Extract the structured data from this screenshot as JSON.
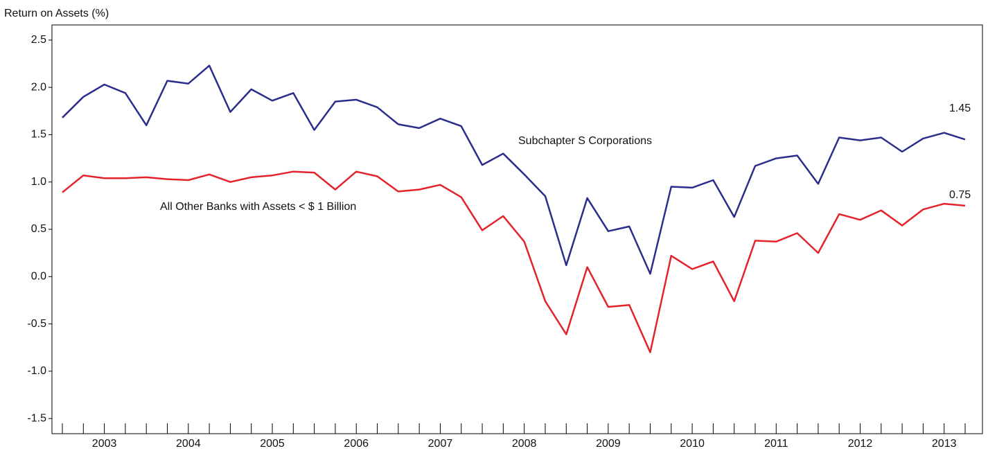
{
  "chart_data": {
    "type": "line",
    "y_label": "Return on Assets (%)",
    "categories": [
      null,
      null,
      "2003",
      null,
      null,
      null,
      "2004",
      null,
      null,
      null,
      "2005",
      null,
      null,
      null,
      "2006",
      null,
      null,
      null,
      "2007",
      null,
      null,
      null,
      "2008",
      null,
      null,
      null,
      "2009",
      null,
      null,
      null,
      "2010",
      null,
      null,
      null,
      "2011",
      null,
      null,
      null,
      "2012",
      null,
      null,
      null,
      "2013",
      null
    ],
    "series": [
      {
        "name": "Subchapter S Corporations",
        "color": "#2b2d8c",
        "values": [
          1.68,
          1.9,
          2.03,
          1.94,
          1.6,
          2.07,
          2.04,
          2.23,
          1.74,
          1.98,
          1.86,
          1.94,
          1.55,
          1.85,
          1.87,
          1.79,
          1.61,
          1.57,
          1.67,
          1.59,
          1.18,
          1.3,
          1.08,
          0.85,
          0.12,
          0.83,
          0.48,
          0.53,
          0.03,
          0.95,
          0.94,
          1.02,
          0.63,
          1.17,
          1.25,
          1.28,
          0.98,
          1.47,
          1.44,
          1.47,
          1.32,
          1.46,
          1.52,
          1.45
        ]
      },
      {
        "name": "All Other Banks with Assets < $ 1 Billion",
        "color": "#e3222b",
        "values": [
          0.89,
          1.07,
          1.04,
          1.04,
          1.05,
          1.03,
          1.02,
          1.08,
          1.0,
          1.05,
          1.07,
          1.11,
          1.1,
          0.92,
          1.11,
          1.06,
          0.9,
          0.92,
          0.97,
          0.84,
          0.49,
          0.64,
          0.37,
          -0.26,
          -0.61,
          0.1,
          -0.32,
          -0.3,
          -0.8,
          0.22,
          0.08,
          0.16,
          -0.26,
          0.38,
          0.37,
          0.46,
          0.25,
          0.66,
          0.6,
          0.7,
          0.54,
          0.71,
          0.77,
          0.75
        ]
      }
    ],
    "ylim": [
      -1.66,
      2.66
    ],
    "yticks": [
      2.5,
      {
        "value": 2,
        "label": "2.0"
      },
      1.5,
      {
        "value": 1,
        "label": "1.0"
      },
      0.5,
      {
        "value": 0,
        "label": "0.0"
      },
      -0.5,
      {
        "value": -1,
        "label": "-1.0"
      },
      -1.5
    ],
    "grid": false
  }
}
